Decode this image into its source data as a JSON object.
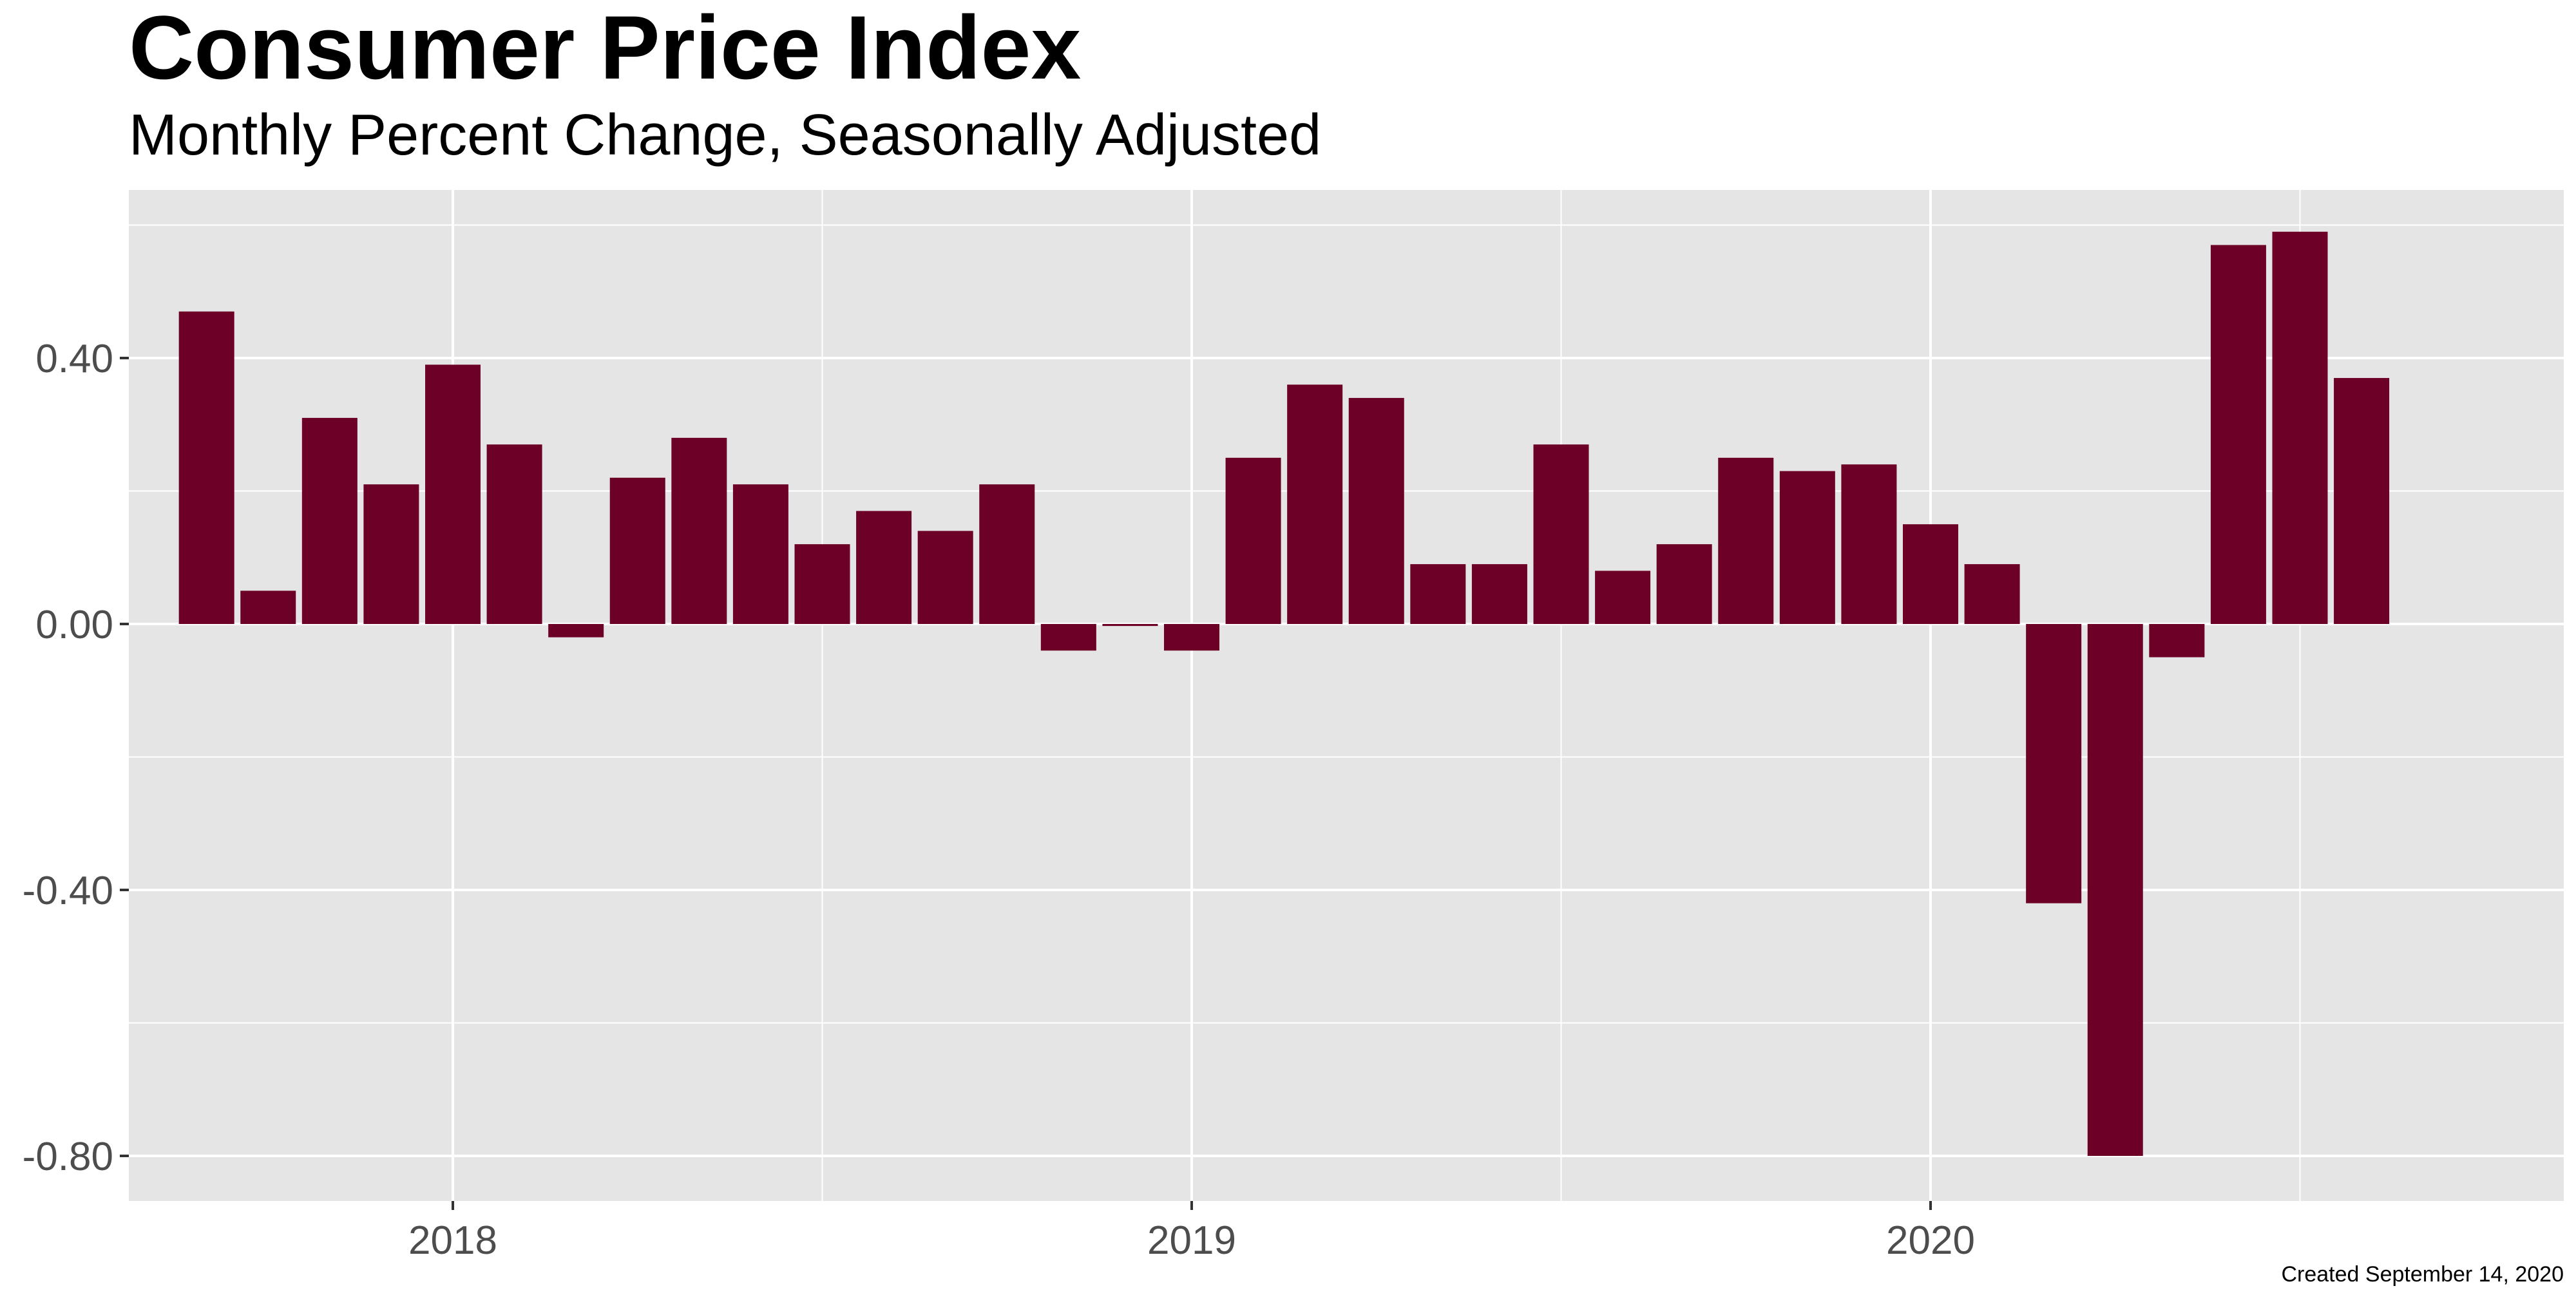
{
  "chart_data": {
    "type": "bar",
    "title": "Consumer Price Index",
    "subtitle": "Monthly Percent Change, Seasonally Adjusted",
    "caption": "Created September 14, 2020",
    "xlabel": "",
    "ylabel": "",
    "x_ticks": [
      "2018",
      "2019",
      "2020"
    ],
    "y_ticks": [
      "-0.80",
      "-0.40",
      "0.00",
      "0.40"
    ],
    "ylim": [
      -0.87,
      0.65
    ],
    "grid": true,
    "bar_color": "#6d0026",
    "panel_color": "#e5e5e5",
    "categories": [
      "2017-09",
      "2017-10",
      "2017-11",
      "2017-12",
      "2018-01",
      "2018-02",
      "2018-03",
      "2018-04",
      "2018-05",
      "2018-06",
      "2018-07",
      "2018-08",
      "2018-09",
      "2018-10",
      "2018-11",
      "2018-12",
      "2019-01",
      "2019-02",
      "2019-03",
      "2019-04",
      "2019-05",
      "2019-06",
      "2019-07",
      "2019-08",
      "2019-09",
      "2019-10",
      "2019-11",
      "2019-12",
      "2020-01",
      "2020-02",
      "2020-03",
      "2020-04",
      "2020-05",
      "2020-06",
      "2020-07",
      "2020-08"
    ],
    "values": [
      0.47,
      0.05,
      0.31,
      0.21,
      0.39,
      0.27,
      -0.02,
      0.22,
      0.28,
      0.21,
      0.12,
      0.17,
      0.14,
      0.21,
      -0.04,
      -0.003,
      -0.04,
      0.25,
      0.36,
      0.34,
      0.09,
      0.09,
      0.27,
      0.08,
      0.12,
      0.25,
      0.23,
      0.24,
      0.15,
      0.09,
      -0.42,
      -0.8,
      -0.05,
      0.57,
      0.59,
      0.37
    ]
  }
}
